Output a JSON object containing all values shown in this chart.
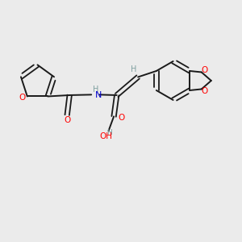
{
  "background_color": "#ebebeb",
  "bond_color": "#1a1a1a",
  "oxygen_color": "#ff0000",
  "nitrogen_color": "#0000cc",
  "hydrogen_color": "#7fa0a0",
  "figsize": [
    3.0,
    3.0
  ],
  "dpi": 100,
  "xlim": [
    0,
    10
  ],
  "ylim": [
    0,
    10
  ]
}
